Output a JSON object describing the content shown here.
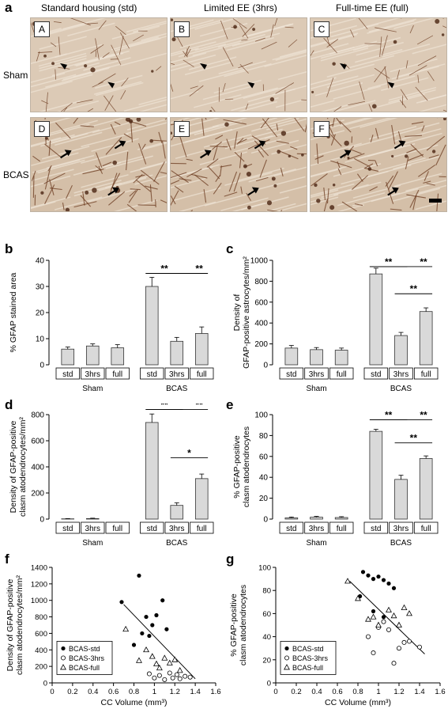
{
  "panel_a": {
    "letter": "a",
    "columns": [
      "Standard housing (std)",
      "Limited EE (3hrs)",
      "Full-time EE (full)"
    ],
    "rows": [
      "Sham",
      "BCAS"
    ],
    "tiles": [
      "A",
      "B",
      "C",
      "D",
      "E",
      "F"
    ]
  },
  "chart_data": [
    {
      "id": "b",
      "type": "bar",
      "ylabel": "% GFAP stained area",
      "ylim": [
        0,
        40
      ],
      "yticks": [
        0,
        10,
        20,
        30,
        40
      ],
      "categories": [
        "std",
        "3hrs",
        "full",
        "std",
        "3hrs",
        "full"
      ],
      "groups": [
        "Sham",
        "BCAS"
      ],
      "values": [
        6,
        7.2,
        6.5,
        30,
        9,
        12
      ],
      "errors": [
        0.8,
        0.8,
        1.2,
        3.5,
        1.5,
        2.5
      ],
      "significance": [
        {
          "from": 3,
          "to": 4,
          "label": "**",
          "y": 35
        },
        {
          "from": 3,
          "to": 5,
          "label": "**",
          "y": 35
        }
      ]
    },
    {
      "id": "c",
      "type": "bar",
      "ylabel": "Density of GFAP-positive astrocytes/mm²",
      "ylim": [
        0,
        1000
      ],
      "yticks": [
        0,
        200,
        400,
        600,
        800,
        1000
      ],
      "categories": [
        "std",
        "3hrs",
        "full",
        "std",
        "3hrs",
        "full"
      ],
      "groups": [
        "Sham",
        "BCAS"
      ],
      "values": [
        160,
        145,
        140,
        870,
        280,
        510
      ],
      "errors": [
        25,
        20,
        20,
        55,
        30,
        35
      ],
      "significance": [
        {
          "from": 3,
          "to": 4,
          "label": "**",
          "y": 940
        },
        {
          "from": 3,
          "to": 5,
          "label": "**",
          "y": 940
        },
        {
          "from": 4,
          "to": 5,
          "label": "**",
          "y": 680
        }
      ]
    },
    {
      "id": "d",
      "type": "bar",
      "ylabel": "Density of GFAP-positive clasm atodendrocytes/mm²",
      "ylim": [
        0,
        800
      ],
      "yticks": [
        0,
        200,
        400,
        600,
        800
      ],
      "categories": [
        "std",
        "3hrs",
        "full",
        "std",
        "3hrs",
        "full"
      ],
      "groups": [
        "Sham",
        "BCAS"
      ],
      "values": [
        2,
        4,
        0,
        740,
        105,
        310
      ],
      "errors": [
        2,
        3,
        0,
        65,
        20,
        35
      ],
      "significance": [
        {
          "from": 3,
          "to": 4,
          "label": "**",
          "y": 840
        },
        {
          "from": 3,
          "to": 5,
          "label": "**",
          "y": 840
        },
        {
          "from": 4,
          "to": 5,
          "label": "*",
          "y": 470
        }
      ]
    },
    {
      "id": "e",
      "type": "bar",
      "ylabel": "% GFAP-positive clasm atodendrocytes",
      "ylim": [
        0,
        100
      ],
      "yticks": [
        0,
        20,
        40,
        60,
        80,
        100
      ],
      "categories": [
        "std",
        "3hrs",
        "full",
        "std",
        "3hrs",
        "full"
      ],
      "groups": [
        "Sham",
        "BCAS"
      ],
      "values": [
        1.2,
        1.8,
        1.5,
        84,
        38,
        58
      ],
      "errors": [
        0.8,
        0.8,
        0.8,
        2,
        4,
        2.5
      ],
      "significance": [
        {
          "from": 3,
          "to": 4,
          "label": "**",
          "y": 95
        },
        {
          "from": 3,
          "to": 5,
          "label": "**",
          "y": 95
        },
        {
          "from": 4,
          "to": 5,
          "label": "**",
          "y": 73
        }
      ]
    },
    {
      "id": "f",
      "type": "scatter",
      "xlabel": "CC Volume (mm³)",
      "ylabel": "Density of GFAP-positive clasm atodendrocytes/mm²",
      "xlim": [
        0,
        1.6
      ],
      "xticks": [
        0,
        0.2,
        0.4,
        0.6,
        0.8,
        1.0,
        1.2,
        1.4,
        1.6
      ],
      "ylim": [
        0,
        1400
      ],
      "yticks": [
        0,
        200,
        400,
        600,
        800,
        1000,
        1200,
        1400
      ],
      "legend": [
        "BCAS-std",
        "BCAS-3hrs",
        "BCAS-full"
      ],
      "legend_position": "lower-left",
      "series": [
        {
          "name": "BCAS-std",
          "marker": "filled-circle",
          "points": [
            [
              0.68,
              980
            ],
            [
              0.85,
              1300
            ],
            [
              0.88,
              600
            ],
            [
              0.92,
              800
            ],
            [
              0.95,
              570
            ],
            [
              0.98,
              700
            ],
            [
              1.02,
              820
            ],
            [
              1.08,
              1000
            ],
            [
              1.12,
              650
            ],
            [
              0.8,
              460
            ]
          ]
        },
        {
          "name": "BCAS-3hrs",
          "marker": "open-circle",
          "points": [
            [
              0.95,
              110
            ],
            [
              1.0,
              60
            ],
            [
              1.05,
              90
            ],
            [
              1.1,
              40
            ],
            [
              1.15,
              120
            ],
            [
              1.18,
              60
            ],
            [
              1.22,
              100
            ],
            [
              1.25,
              50
            ],
            [
              1.3,
              80
            ],
            [
              1.35,
              70
            ]
          ]
        },
        {
          "name": "BCAS-full",
          "marker": "triangle",
          "points": [
            [
              0.72,
              650
            ],
            [
              0.85,
              270
            ],
            [
              0.92,
              400
            ],
            [
              0.98,
              320
            ],
            [
              1.02,
              230
            ],
            [
              1.05,
              180
            ],
            [
              1.1,
              300
            ],
            [
              1.15,
              240
            ],
            [
              1.2,
              280
            ],
            [
              1.25,
              150
            ]
          ]
        }
      ],
      "trendline": [
        [
          0.7,
          950
        ],
        [
          1.4,
          50
        ]
      ]
    },
    {
      "id": "g",
      "type": "scatter",
      "xlabel": "CC Volume (mm³)",
      "ylabel": "% GFAP-positive clasm atodendrocytes",
      "xlim": [
        0,
        1.6
      ],
      "xticks": [
        0,
        0.2,
        0.4,
        0.6,
        0.8,
        1.0,
        1.2,
        1.4,
        1.6
      ],
      "ylim": [
        0,
        100
      ],
      "yticks": [
        0,
        20,
        40,
        60,
        80,
        100
      ],
      "legend": [
        "BCAS-std",
        "BCAS-3hrs",
        "BCAS-full"
      ],
      "legend_position": "lower-left",
      "series": [
        {
          "name": "BCAS-std",
          "marker": "filled-circle",
          "points": [
            [
              0.85,
              96
            ],
            [
              0.9,
              93
            ],
            [
              0.95,
              90
            ],
            [
              1.0,
              92
            ],
            [
              1.05,
              89
            ],
            [
              1.1,
              86
            ],
            [
              1.15,
              82
            ],
            [
              0.82,
              75
            ],
            [
              0.95,
              62
            ],
            [
              1.05,
              57
            ]
          ]
        },
        {
          "name": "BCAS-3hrs",
          "marker": "open-circle",
          "points": [
            [
              0.9,
              40
            ],
            [
              0.95,
              26
            ],
            [
              1.0,
              48
            ],
            [
              1.05,
              53
            ],
            [
              1.1,
              46
            ],
            [
              1.15,
              17
            ],
            [
              1.2,
              30
            ],
            [
              1.25,
              35
            ],
            [
              1.3,
              36
            ],
            [
              1.4,
              31
            ]
          ]
        },
        {
          "name": "BCAS-full",
          "marker": "triangle",
          "points": [
            [
              0.7,
              88
            ],
            [
              0.8,
              73
            ],
            [
              0.9,
              55
            ],
            [
              0.95,
              57
            ],
            [
              1.0,
              50
            ],
            [
              1.1,
              63
            ],
            [
              1.15,
              58
            ],
            [
              1.2,
              50
            ],
            [
              1.25,
              65
            ],
            [
              1.3,
              60
            ]
          ]
        }
      ],
      "trendline": [
        [
          0.72,
          88
        ],
        [
          1.45,
          25
        ]
      ]
    }
  ],
  "panel_letters": {
    "b": "b",
    "c": "c",
    "d": "d",
    "e": "e",
    "f": "f",
    "g": "g"
  },
  "colors": {
    "bar": "#d9d9d9",
    "bar_stroke": "#333333",
    "tissue": "#d8c7b4",
    "stain": "#6b3a1f"
  }
}
